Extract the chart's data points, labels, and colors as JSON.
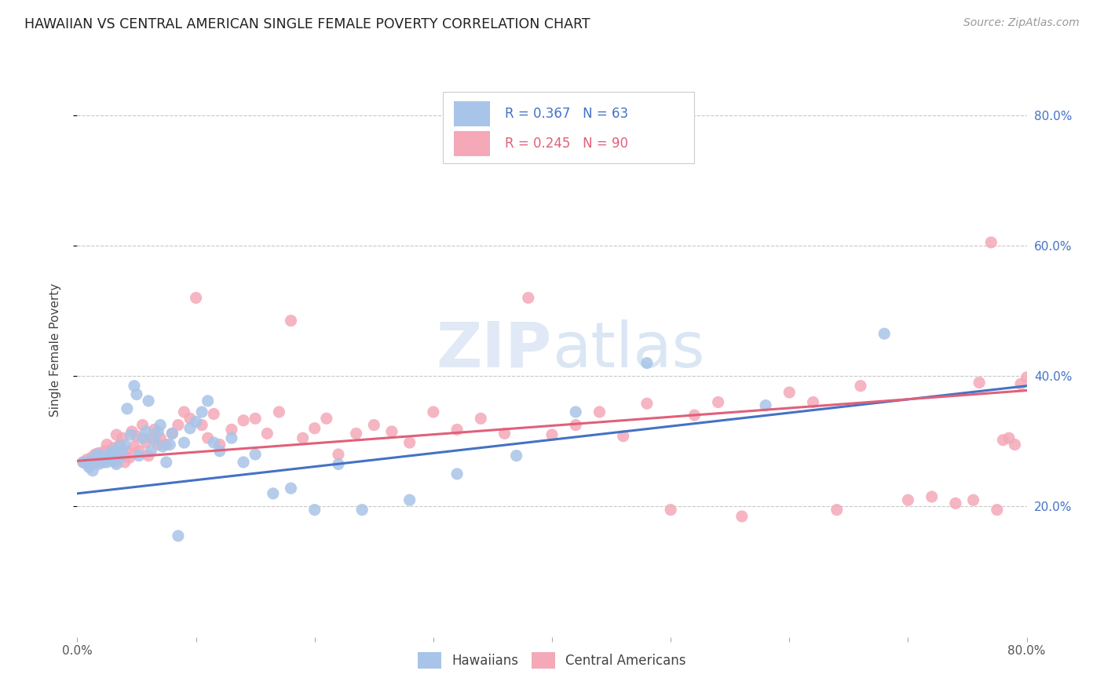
{
  "title": "HAWAIIAN VS CENTRAL AMERICAN SINGLE FEMALE POVERTY CORRELATION CHART",
  "source": "Source: ZipAtlas.com",
  "ylabel": "Single Female Poverty",
  "right_yticks": [
    "20.0%",
    "40.0%",
    "60.0%",
    "80.0%"
  ],
  "right_ytick_vals": [
    0.2,
    0.4,
    0.6,
    0.8
  ],
  "xlim": [
    0.0,
    0.8
  ],
  "ylim": [
    0.0,
    0.88
  ],
  "hawaiian_color": "#a8c4e8",
  "central_color": "#f4a8b8",
  "hawaiian_line_color": "#4472c4",
  "central_line_color": "#e0607a",
  "background_color": "#ffffff",
  "grid_color": "#c8c8c8",
  "watermark_color": "#d0dff0",
  "hawaiian_x": [
    0.005,
    0.008,
    0.01,
    0.012,
    0.013,
    0.015,
    0.016,
    0.018,
    0.018,
    0.02,
    0.022,
    0.023,
    0.025,
    0.025,
    0.027,
    0.028,
    0.03,
    0.03,
    0.032,
    0.033,
    0.035,
    0.036,
    0.038,
    0.04,
    0.042,
    0.045,
    0.048,
    0.05,
    0.052,
    0.055,
    0.058,
    0.06,
    0.062,
    0.065,
    0.068,
    0.07,
    0.072,
    0.075,
    0.078,
    0.08,
    0.085,
    0.09,
    0.095,
    0.1,
    0.105,
    0.11,
    0.115,
    0.12,
    0.13,
    0.14,
    0.15,
    0.165,
    0.18,
    0.2,
    0.22,
    0.24,
    0.28,
    0.32,
    0.37,
    0.42,
    0.48,
    0.58,
    0.68
  ],
  "hawaiian_y": [
    0.268,
    0.265,
    0.26,
    0.272,
    0.255,
    0.27,
    0.278,
    0.265,
    0.28,
    0.272,
    0.268,
    0.275,
    0.275,
    0.268,
    0.28,
    0.282,
    0.27,
    0.285,
    0.278,
    0.265,
    0.292,
    0.275,
    0.285,
    0.295,
    0.35,
    0.31,
    0.385,
    0.372,
    0.278,
    0.305,
    0.315,
    0.362,
    0.285,
    0.302,
    0.315,
    0.325,
    0.292,
    0.268,
    0.295,
    0.312,
    0.155,
    0.298,
    0.32,
    0.33,
    0.345,
    0.362,
    0.298,
    0.285,
    0.305,
    0.268,
    0.28,
    0.22,
    0.228,
    0.195,
    0.265,
    0.195,
    0.21,
    0.25,
    0.278,
    0.345,
    0.42,
    0.355,
    0.465
  ],
  "central_x": [
    0.005,
    0.008,
    0.01,
    0.012,
    0.013,
    0.015,
    0.016,
    0.017,
    0.018,
    0.019,
    0.02,
    0.022,
    0.023,
    0.025,
    0.026,
    0.028,
    0.03,
    0.032,
    0.033,
    0.035,
    0.036,
    0.038,
    0.04,
    0.042,
    0.044,
    0.046,
    0.048,
    0.05,
    0.052,
    0.055,
    0.058,
    0.06,
    0.062,
    0.065,
    0.068,
    0.07,
    0.075,
    0.08,
    0.085,
    0.09,
    0.095,
    0.1,
    0.105,
    0.11,
    0.115,
    0.12,
    0.13,
    0.14,
    0.15,
    0.16,
    0.17,
    0.18,
    0.19,
    0.2,
    0.21,
    0.22,
    0.235,
    0.25,
    0.265,
    0.28,
    0.3,
    0.32,
    0.34,
    0.36,
    0.38,
    0.4,
    0.42,
    0.44,
    0.46,
    0.48,
    0.5,
    0.52,
    0.54,
    0.56,
    0.6,
    0.62,
    0.64,
    0.66,
    0.7,
    0.72,
    0.74,
    0.755,
    0.76,
    0.77,
    0.775,
    0.78,
    0.785,
    0.79,
    0.795,
    0.8
  ],
  "central_y": [
    0.268,
    0.272,
    0.265,
    0.275,
    0.27,
    0.28,
    0.278,
    0.268,
    0.282,
    0.275,
    0.272,
    0.268,
    0.285,
    0.295,
    0.278,
    0.28,
    0.29,
    0.268,
    0.31,
    0.285,
    0.295,
    0.305,
    0.268,
    0.285,
    0.275,
    0.315,
    0.292,
    0.308,
    0.285,
    0.325,
    0.298,
    0.278,
    0.305,
    0.318,
    0.295,
    0.305,
    0.295,
    0.312,
    0.325,
    0.345,
    0.335,
    0.52,
    0.325,
    0.305,
    0.342,
    0.295,
    0.318,
    0.332,
    0.335,
    0.312,
    0.345,
    0.485,
    0.305,
    0.32,
    0.335,
    0.28,
    0.312,
    0.325,
    0.315,
    0.298,
    0.345,
    0.318,
    0.335,
    0.312,
    0.52,
    0.31,
    0.325,
    0.345,
    0.308,
    0.358,
    0.195,
    0.34,
    0.36,
    0.185,
    0.375,
    0.36,
    0.195,
    0.385,
    0.21,
    0.215,
    0.205,
    0.21,
    0.39,
    0.605,
    0.195,
    0.302,
    0.305,
    0.295,
    0.388,
    0.398
  ],
  "legend_R1": "R = 0.367",
  "legend_N1": "N = 63",
  "legend_R2": "R = 0.245",
  "legend_N2": "N = 90"
}
